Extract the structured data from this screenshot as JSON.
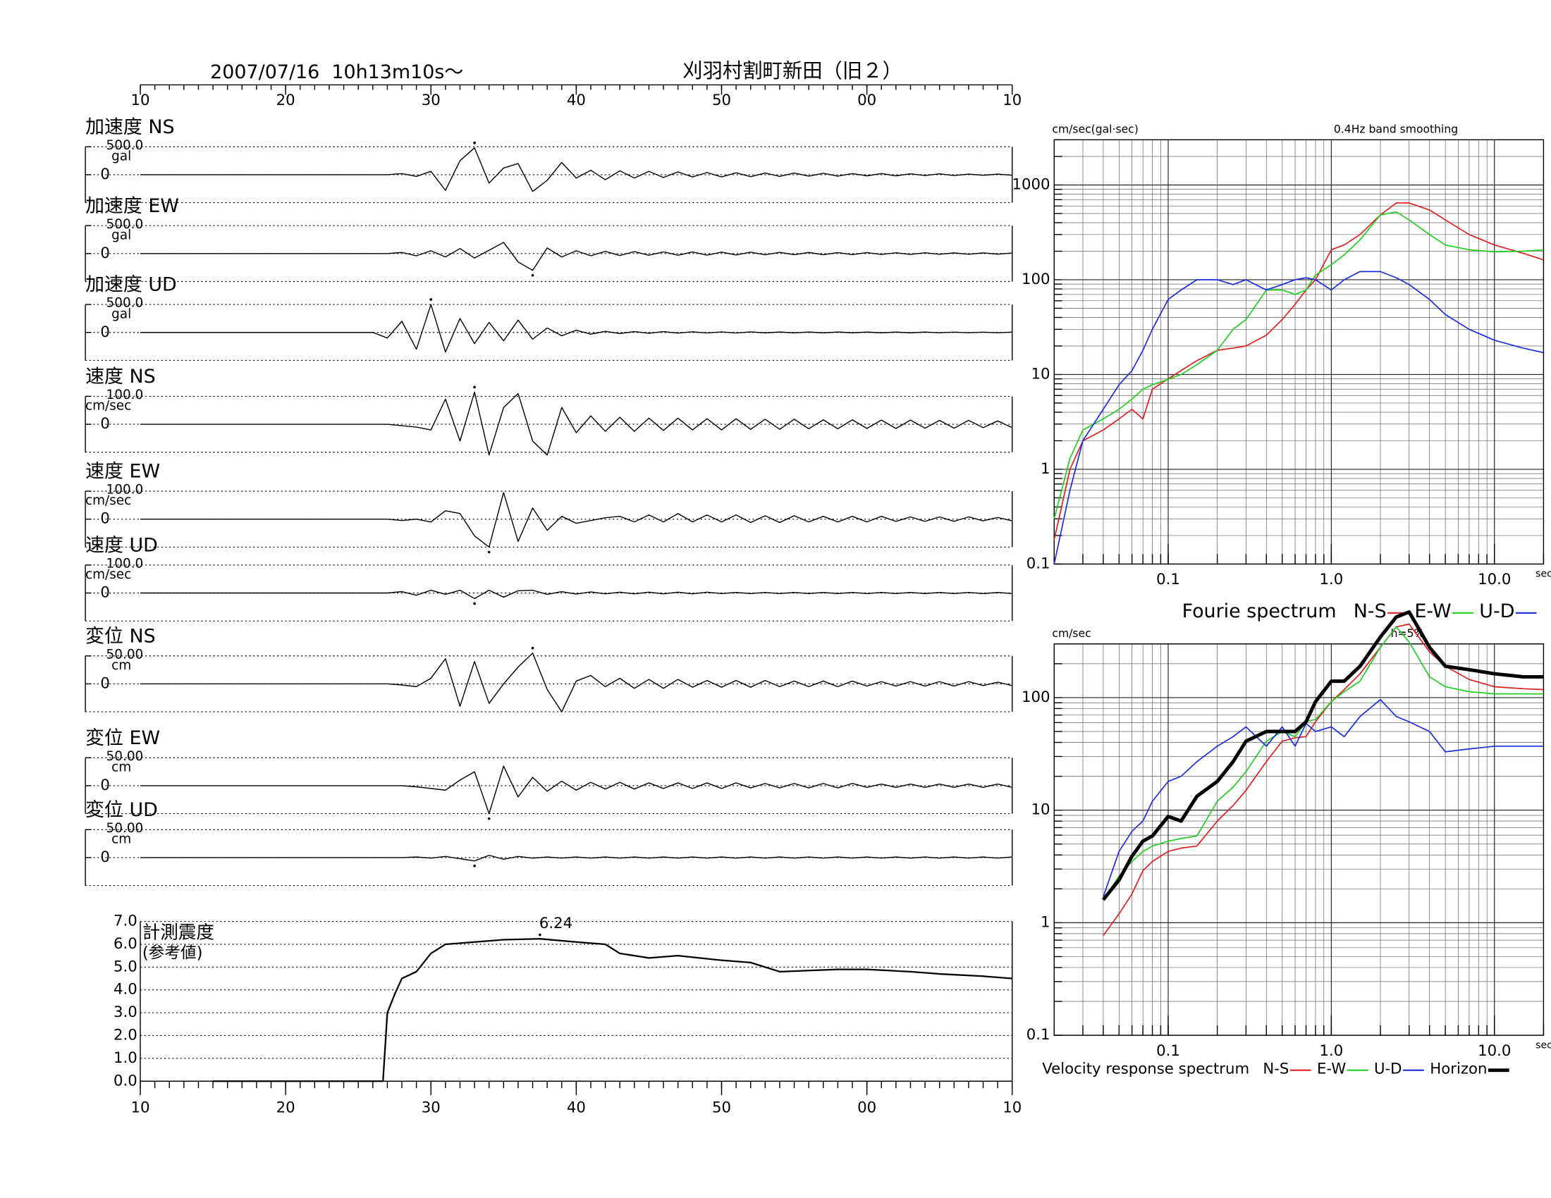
{
  "header": {
    "date": "2007/07/16  10h13m10s〜",
    "station": "刈羽村割町新田（旧２）"
  },
  "chart_data": [
    {
      "type": "waveform",
      "color": "#000000",
      "xlim": [
        10,
        70
      ],
      "xticks": [
        10,
        20,
        30,
        40,
        50,
        {
          "value": 60,
          "label": "00"
        },
        {
          "value": 70,
          "label": "10"
        }
      ],
      "x": [
        10,
        26,
        27,
        28,
        29,
        30,
        31,
        32,
        33,
        34,
        35,
        36,
        37,
        38,
        39,
        40,
        41,
        42,
        43,
        44,
        45,
        46,
        47,
        48,
        49,
        50,
        51,
        52,
        53,
        54,
        55,
        56,
        57,
        58,
        59,
        60,
        61,
        62,
        63,
        64,
        65,
        66,
        67,
        68,
        69,
        70
      ],
      "series": [
        {
          "name": "加速度 NS",
          "unit": "gal",
          "ylim": [
            -500,
            500
          ],
          "yticks": [
            0,
            {
              "value": 500,
              "label": "500.0"
            }
          ],
          "values": [
            0,
            0,
            0,
            20,
            -30,
            60,
            -280,
            250,
            480,
            -150,
            120,
            200,
            -300,
            -100,
            220,
            -60,
            80,
            -90,
            70,
            -60,
            60,
            -50,
            50,
            -40,
            40,
            -40,
            35,
            -35,
            30,
            -30,
            30,
            -25,
            25,
            -25,
            20,
            -20,
            20,
            -20,
            15,
            -15,
            15,
            -15,
            10,
            -10,
            10,
            -10
          ]
        },
        {
          "name": "加速度 EW",
          "unit": "gal",
          "ylim": [
            -500,
            500
          ],
          "yticks": [
            0,
            {
              "value": 500,
              "label": "500.0"
            }
          ],
          "values": [
            0,
            0,
            0,
            20,
            -40,
            50,
            -60,
            90,
            -80,
            60,
            200,
            -150,
            -300,
            100,
            -60,
            50,
            -40,
            40,
            -35,
            35,
            -30,
            30,
            -30,
            28,
            -28,
            25,
            -25,
            25,
            -22,
            22,
            -20,
            20,
            -20,
            18,
            -18,
            18,
            -15,
            15,
            -15,
            15,
            -12,
            12,
            -12,
            12,
            -10,
            10
          ]
        },
        {
          "name": "加速度 UD",
          "unit": "gal",
          "ylim": [
            -500,
            500
          ],
          "yticks": [
            0,
            {
              "value": 500,
              "label": "500.0"
            }
          ],
          "values": [
            0,
            0,
            -100,
            200,
            -300,
            500,
            -350,
            250,
            -200,
            180,
            -150,
            220,
            -120,
            80,
            -60,
            40,
            -30,
            20,
            -20,
            15,
            -15,
            15,
            -12,
            12,
            -10,
            10,
            -10,
            10,
            -8,
            8,
            -8,
            8,
            -8,
            8,
            -6,
            6,
            -6,
            6,
            -6,
            6,
            -5,
            5,
            -5,
            5,
            -5,
            5
          ]
        },
        {
          "name": "速度 NS",
          "unit": "cm/sec",
          "ylim": [
            -100,
            100
          ],
          "yticks": [
            0,
            {
              "value": 100,
              "label": "100.0"
            }
          ],
          "values": [
            0,
            0,
            0,
            -5,
            -10,
            -20,
            90,
            -60,
            115,
            -110,
            60,
            110,
            -60,
            -110,
            60,
            -30,
            30,
            -25,
            25,
            -25,
            22,
            -22,
            22,
            -20,
            20,
            -20,
            20,
            -18,
            18,
            -18,
            18,
            -16,
            16,
            -16,
            16,
            -15,
            15,
            -15,
            15,
            -14,
            14,
            -14,
            14,
            -12,
            12,
            -12
          ]
        },
        {
          "name": "速度 EW",
          "unit": "cm/sec",
          "ylim": [
            -100,
            100
          ],
          "yticks": [
            0,
            {
              "value": 100,
              "label": "100.0"
            }
          ],
          "values": [
            0,
            0,
            0,
            -5,
            0,
            -10,
            30,
            20,
            -60,
            -100,
            95,
            -80,
            40,
            -40,
            10,
            -15,
            -5,
            5,
            10,
            -10,
            15,
            -10,
            20,
            -10,
            15,
            -10,
            15,
            -12,
            12,
            -12,
            12,
            -10,
            10,
            -10,
            10,
            -10,
            10,
            -8,
            8,
            -8,
            8,
            -8,
            8,
            -6,
            6,
            -6
          ]
        },
        {
          "name": "速度 UD",
          "unit": "cm/sec",
          "ylim": [
            -100,
            100
          ],
          "yticks": [
            0,
            {
              "value": 100,
              "label": "100.0"
            }
          ],
          "values": [
            0,
            0,
            0,
            5,
            -8,
            10,
            -5,
            10,
            -20,
            10,
            -15,
            8,
            10,
            -5,
            5,
            -4,
            4,
            -3,
            3,
            -3,
            3,
            -3,
            3,
            -3,
            3,
            -2,
            2,
            -2,
            2,
            -2,
            2,
            -2,
            2,
            -2,
            2,
            -2,
            2,
            -2,
            2,
            -2,
            2,
            -2,
            2,
            -2,
            2,
            -2
          ]
        },
        {
          "name": "変位 NS",
          "unit": "cm",
          "ylim": [
            -50,
            50
          ],
          "yticks": [
            0,
            {
              "value": 50,
              "label": "50.00"
            }
          ],
          "values": [
            0,
            0,
            0,
            -2,
            -5,
            10,
            45,
            -40,
            40,
            -35,
            0,
            30,
            55,
            -10,
            -50,
            5,
            15,
            -5,
            10,
            -8,
            8,
            -8,
            8,
            -6,
            6,
            -6,
            6,
            -6,
            6,
            -5,
            5,
            -5,
            5,
            -5,
            5,
            -4,
            4,
            -4,
            4,
            -4,
            4,
            -4,
            4,
            -3,
            3,
            -3
          ]
        },
        {
          "name": "変位 EW",
          "unit": "cm",
          "ylim": [
            -50,
            50
          ],
          "yticks": [
            0,
            {
              "value": 50,
              "label": "50.00"
            }
          ],
          "values": [
            0,
            0,
            0,
            0,
            -2,
            -5,
            -8,
            10,
            25,
            -50,
            35,
            -20,
            15,
            -10,
            8,
            -8,
            6,
            -6,
            6,
            -6,
            5,
            -5,
            5,
            -5,
            5,
            -5,
            5,
            -4,
            4,
            -4,
            4,
            -4,
            4,
            -4,
            4,
            -3,
            3,
            -3,
            3,
            -3,
            3,
            -3,
            3,
            -3,
            3,
            -3
          ]
        },
        {
          "name": "変位 UD",
          "unit": "cm",
          "ylim": [
            -50,
            50
          ],
          "yticks": [
            0,
            {
              "value": 50,
              "label": "50.00"
            }
          ],
          "values": [
            0,
            0,
            0,
            0,
            1,
            -1,
            2,
            -2,
            -6,
            4,
            -3,
            2,
            -1,
            1,
            -1,
            1,
            -1,
            1,
            -1,
            1,
            -1,
            1,
            -1,
            1,
            -1,
            1,
            -1,
            1,
            -1,
            1,
            -1,
            1,
            -1,
            1,
            -1,
            1,
            -1,
            1,
            -1,
            1,
            -1,
            1,
            -1,
            1,
            -1,
            1
          ]
        }
      ]
    },
    {
      "type": "line",
      "title": "計測震度",
      "subtitle": "(参考値)",
      "color": "#000000",
      "xlim": [
        10,
        70
      ],
      "xticks": [
        10,
        20,
        30,
        40,
        50,
        {
          "value": 60,
          "label": "00"
        },
        {
          "value": 70,
          "label": "10"
        }
      ],
      "ylim": [
        0,
        7
      ],
      "yticks": [
        {
          "value": 0,
          "label": "0.0"
        },
        {
          "value": 1,
          "label": "1.0"
        },
        {
          "value": 2,
          "label": "2.0"
        },
        {
          "value": 3,
          "label": "3.0"
        },
        {
          "value": 4,
          "label": "4.0"
        },
        {
          "value": 5,
          "label": "5.0"
        },
        {
          "value": 6,
          "label": "6.0"
        },
        {
          "value": 7,
          "label": "7.0"
        }
      ],
      "x": [
        15,
        26.7,
        27,
        27.5,
        28,
        29,
        30,
        31,
        33,
        35,
        37.5,
        40,
        42,
        43,
        45,
        47,
        50,
        52,
        54,
        58,
        60,
        63,
        65,
        68,
        70
      ],
      "values": [
        0,
        0,
        3.0,
        3.8,
        4.5,
        4.8,
        5.6,
        6.0,
        6.1,
        6.2,
        6.24,
        6.1,
        6.0,
        5.6,
        5.4,
        5.5,
        5.3,
        5.2,
        4.8,
        4.9,
        4.9,
        4.8,
        4.7,
        4.6,
        4.5
      ]
    },
    {
      "type": "loglog",
      "title": "Fourie spectrum",
      "ylabel": "cm/sec(gal·sec)",
      "xlabel": "sec",
      "note": "0.4Hz band smoothing",
      "log": true,
      "grid": true,
      "legend": "bottom",
      "xlim": [
        0.02,
        20
      ],
      "ylim": [
        0.1,
        3000
      ],
      "xticks": [
        0.1,
        {
          "value": 1,
          "label": "1.0"
        },
        {
          "value": 10,
          "label": "10.0"
        }
      ],
      "yticks": [
        0.1,
        1,
        10,
        100,
        1000
      ],
      "x": [
        0.02,
        0.025,
        0.03,
        0.04,
        0.05,
        0.06,
        0.07,
        0.08,
        0.1,
        0.12,
        0.15,
        0.2,
        0.25,
        0.3,
        0.4,
        0.5,
        0.6,
        0.7,
        0.8,
        1,
        1.2,
        1.5,
        2,
        2.5,
        3,
        4,
        5,
        7,
        10,
        15,
        20
      ],
      "series": [
        {
          "name": "N-S",
          "color": "#e02020",
          "values": [
            0.18,
            1,
            2,
            2.6,
            3.4,
            4.3,
            3.4,
            7,
            9,
            11,
            14,
            18,
            19,
            20,
            26,
            38,
            55,
            78,
            100,
            207,
            233,
            300,
            483,
            646,
            646,
            545,
            428,
            300,
            233,
            190,
            162
          ]
        },
        {
          "name": "E-W",
          "color": "#20d020",
          "values": [
            0.3,
            1.3,
            2.6,
            3.4,
            4.3,
            5.5,
            7,
            7.8,
            8.9,
            10,
            12.7,
            18,
            30,
            38,
            78,
            78,
            70,
            78,
            112,
            144,
            183,
            264,
            483,
            520,
            428,
            300,
            233,
            207,
            197,
            200,
            207
          ]
        },
        {
          "name": "U-D",
          "color": "#1a2ee0",
          "values": [
            0.1,
            0.6,
            2,
            4.3,
            7.8,
            11,
            18,
            30,
            62,
            78,
            100,
            100,
            89,
            100,
            78,
            89,
            100,
            105,
            100,
            78,
            100,
            122,
            122,
            105,
            89,
            62,
            43,
            30,
            23,
            19,
            17
          ]
        }
      ]
    },
    {
      "type": "loglog",
      "title": "Velocity response spectrum",
      "ylabel": "cm/sec",
      "xlabel": "sec",
      "note": "h=5%",
      "log": true,
      "grid": true,
      "legend": "bottom",
      "xlim": [
        0.02,
        20
      ],
      "ylim": [
        0.1,
        300
      ],
      "xticks": [
        0.1,
        {
          "value": 1,
          "label": "1.0"
        },
        {
          "value": 10,
          "label": "10.0"
        }
      ],
      "yticks": [
        0.1,
        1,
        10,
        100
      ],
      "x": [
        0.04,
        0.05,
        0.06,
        0.07,
        0.08,
        0.1,
        0.12,
        0.15,
        0.2,
        0.25,
        0.3,
        0.4,
        0.5,
        0.6,
        0.7,
        0.8,
        1,
        1.2,
        1.5,
        2,
        2.5,
        3,
        4,
        5,
        7,
        10,
        15,
        20
      ],
      "series": [
        {
          "name": "N-S",
          "color": "#e02020",
          "values": [
            0.77,
            1.2,
            1.8,
            2.9,
            3.5,
            4.3,
            4.6,
            4.8,
            8,
            11,
            15,
            27,
            41,
            44,
            45,
            61,
            92,
            118,
            163,
            280,
            425,
            450,
            255,
            190,
            145,
            125,
            120,
            118
          ]
        },
        {
          "name": "E-W",
          "color": "#20d020",
          "values": [
            1.6,
            2.6,
            3.5,
            4.3,
            4.8,
            5.3,
            5.6,
            5.9,
            12,
            16,
            22,
            41,
            50,
            45,
            61,
            64,
            92,
            113,
            140,
            280,
            425,
            313,
            153,
            125,
            113,
            108,
            108,
            108
          ]
        },
        {
          "name": "U-D",
          "color": "#1a2ee0",
          "values": [
            1.7,
            4.3,
            6.5,
            8,
            12,
            18,
            20,
            27,
            37,
            45,
            55,
            37,
            55,
            37,
            59,
            50,
            55,
            45,
            68,
            96,
            68,
            61,
            50,
            33,
            35,
            37,
            37,
            37
          ]
        },
        {
          "name": "Horizon",
          "color": "#000000",
          "line_width": 3.5,
          "values": [
            1.6,
            2.4,
            3.9,
            5.3,
            5.9,
            8.8,
            8,
            13.3,
            18,
            27,
            41,
            50,
            50,
            50,
            61,
            92,
            140,
            140,
            190,
            346,
            520,
            577,
            280,
            190,
            177,
            163,
            153,
            153
          ]
        }
      ]
    }
  ]
}
